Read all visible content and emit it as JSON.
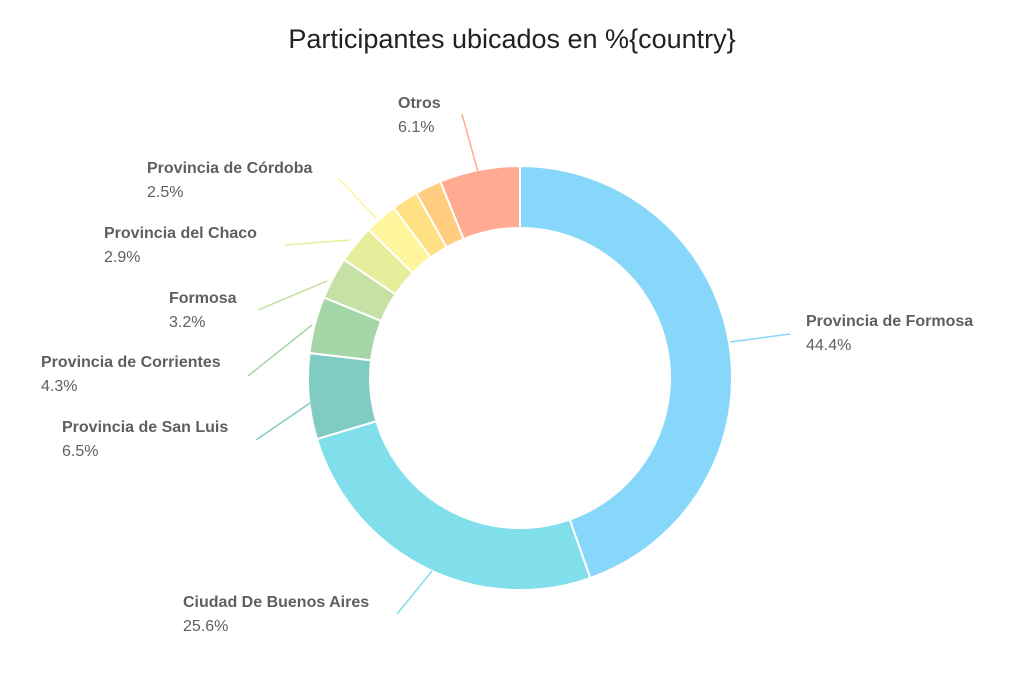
{
  "chart_data": {
    "type": "pie",
    "title": "Participantes ubicados en %{country}",
    "donut": true,
    "slices": [
      {
        "label": "Provincia de Formosa",
        "value": 44.4,
        "value_label": "44.4%",
        "color": "#87d7fa"
      },
      {
        "label": "Ciudad De Buenos Aires",
        "value": 25.6,
        "value_label": "25.6%",
        "color": "#80dfeb"
      },
      {
        "label": "Provincia de San Luis",
        "value": 6.5,
        "value_label": "6.5%",
        "color": "#80cbc4"
      },
      {
        "label": "Provincia de Corrientes",
        "value": 4.3,
        "value_label": "4.3%",
        "color": "#a5d6a7"
      },
      {
        "label": "Formosa",
        "value": 3.2,
        "value_label": "3.2%",
        "color": "#c5e1a5"
      },
      {
        "label": "Provincia del Chaco",
        "value": 2.9,
        "value_label": "2.9%",
        "color": "#e6ee9c"
      },
      {
        "label": "Provincia de Córdoba",
        "value": 2.5,
        "value_label": "2.5%",
        "color": "#fff59d"
      },
      {
        "label": "",
        "value": 2.0,
        "value_label": "",
        "color": "#ffe082"
      },
      {
        "label": "",
        "value": 2.0,
        "value_label": "",
        "color": "#ffcc80"
      },
      {
        "label": "Otros",
        "value": 6.1,
        "value_label": "6.1%",
        "color": "#ffab91"
      }
    ]
  }
}
